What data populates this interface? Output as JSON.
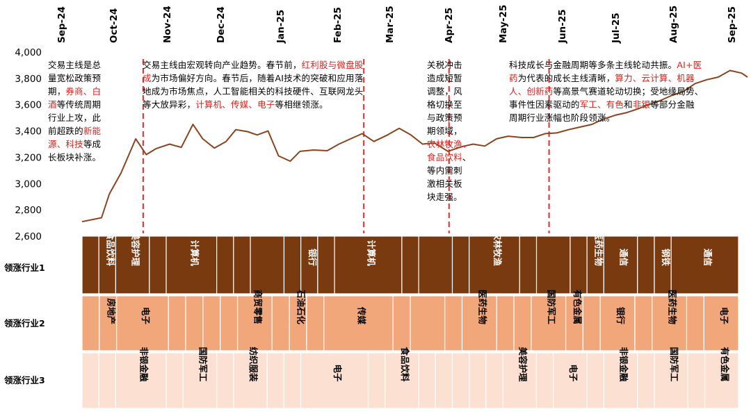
{
  "chart_data": {
    "type": "line",
    "months": [
      "Sep-24",
      "Oct-24",
      "Nov-24",
      "Dec-24",
      "Jan-25",
      "Feb-25",
      "Mar-25",
      "Apr-25",
      "May-25",
      "Jun-25",
      "Jul-25",
      "Aug-25",
      "Sep-25"
    ],
    "yticks": [
      "4,000",
      "3,800",
      "3,600",
      "3,400",
      "3,200",
      "3,000",
      "2,800",
      "2,600"
    ],
    "ylim": [
      2600,
      4000
    ],
    "series": [
      {
        "points": [
          [
            0,
            2710
          ],
          [
            0.5,
            2740
          ],
          [
            0.7,
            2920
          ],
          [
            1.0,
            3080
          ],
          [
            1.38,
            3340
          ],
          [
            1.65,
            3220
          ],
          [
            1.9,
            3265
          ],
          [
            2.25,
            3300
          ],
          [
            2.55,
            3275
          ],
          [
            2.85,
            3450
          ],
          [
            3.1,
            3340
          ],
          [
            3.4,
            3270
          ],
          [
            3.7,
            3320
          ],
          [
            3.95,
            3410
          ],
          [
            4.25,
            3395
          ],
          [
            4.5,
            3370
          ],
          [
            4.78,
            3400
          ],
          [
            5.05,
            3210
          ],
          [
            5.35,
            3170
          ],
          [
            5.6,
            3245
          ],
          [
            5.95,
            3255
          ],
          [
            6.3,
            3250
          ],
          [
            6.6,
            3300
          ],
          [
            6.9,
            3340
          ],
          [
            7.2,
            3380
          ],
          [
            7.5,
            3320
          ],
          [
            7.85,
            3370
          ],
          [
            8.15,
            3420
          ],
          [
            8.45,
            3370
          ],
          [
            8.75,
            3300
          ],
          [
            9.05,
            3310
          ],
          [
            9.4,
            3245
          ],
          [
            9.75,
            3280
          ],
          [
            10.05,
            3300
          ],
          [
            10.35,
            3285
          ],
          [
            10.65,
            3340
          ],
          [
            10.95,
            3360
          ],
          [
            11.3,
            3350
          ],
          [
            11.6,
            3350
          ],
          [
            11.9,
            3380
          ],
          [
            12.2,
            3385
          ],
          [
            12.5,
            3410
          ],
          [
            12.8,
            3430
          ],
          [
            13.1,
            3450
          ],
          [
            13.4,
            3490
          ],
          [
            13.7,
            3520
          ],
          [
            14.0,
            3540
          ],
          [
            14.3,
            3570
          ],
          [
            14.55,
            3600
          ],
          [
            14.85,
            3630
          ],
          [
            15.15,
            3670
          ],
          [
            15.45,
            3700
          ],
          [
            15.75,
            3760
          ],
          [
            16.05,
            3790
          ],
          [
            16.35,
            3810
          ],
          [
            16.65,
            3860
          ],
          [
            16.95,
            3840
          ],
          [
            17.1,
            3810
          ]
        ]
      }
    ],
    "dividers": [
      1.57,
      7.24,
      9.43,
      12.0
    ],
    "annotations": [
      {
        "segs": [
          [
            "t",
            "交易主线是总"
          ],
          [
            "t",
            "量宽松政策预"
          ],
          [
            "t",
            "期，"
          ],
          [
            "h",
            "券商、白"
          ],
          [
            "h",
            "酒"
          ],
          [
            "t",
            "等传统周期"
          ],
          [
            "t",
            "行业上攻，此"
          ],
          [
            "t",
            "前超跌的"
          ],
          [
            "h",
            "新能"
          ],
          [
            "h",
            "源、科技"
          ],
          [
            "t",
            "等成"
          ],
          [
            "t",
            "长板块补涨。"
          ]
        ],
        "lines": [
          [
            0
          ],
          [
            1
          ],
          [
            2,
            3
          ],
          [
            4,
            5
          ],
          [
            6
          ],
          [
            7,
            8
          ],
          [
            9,
            10
          ],
          [
            11
          ]
        ]
      },
      {
        "segs": [
          [
            "t",
            "交易主线由宏观转向产业趋势。春节前，"
          ],
          [
            "h",
            "红利股与微盘股"
          ],
          [
            "h",
            "成"
          ],
          [
            "t",
            "为市场偏好方向。春节后，随着AI技术的突破和应用落"
          ],
          [
            "t",
            "地成为市场焦点，人工智能相关的科技硬件、互联网龙头"
          ],
          [
            "t",
            "等大放异彩，"
          ],
          [
            "h",
            "计算机、传媒、电子"
          ],
          [
            "t",
            "等相继领涨。"
          ]
        ],
        "lines": [
          [
            0,
            1
          ],
          [
            2,
            3
          ],
          [
            4
          ],
          [
            5,
            6,
            7
          ]
        ]
      },
      {
        "segs": [
          [
            "t",
            "关税冲击"
          ],
          [
            "t",
            "造成短暂"
          ],
          [
            "t",
            "调整，风"
          ],
          [
            "t",
            "格切换至"
          ],
          [
            "t",
            "与政策预"
          ],
          [
            "t",
            "期领域，"
          ],
          [
            "h",
            "农林牧渔"
          ],
          [
            "h",
            "、"
          ],
          [
            "h",
            "食品饮料"
          ],
          [
            "t",
            "、"
          ],
          [
            "t",
            "等内需刺"
          ],
          [
            "t",
            "激相关板"
          ],
          [
            "t",
            "块走强。"
          ]
        ],
        "lines": [
          [
            0
          ],
          [
            1
          ],
          [
            2
          ],
          [
            3
          ],
          [
            4
          ],
          [
            5
          ],
          [
            6,
            7
          ],
          [
            8,
            9
          ],
          [
            10
          ],
          [
            11
          ],
          [
            12
          ]
        ]
      },
      {
        "segs": [
          [
            "t",
            "科技成长与金融周期等多条主线轮动共振。"
          ],
          [
            "h",
            "AI+医"
          ],
          [
            "h",
            "药"
          ],
          [
            "t",
            "为代表的成长主线清晰，"
          ],
          [
            "h",
            "算力、云计算、机器"
          ],
          [
            "h",
            "人、创新药"
          ],
          [
            "t",
            "等高景气赛道轮动切换；受地缘局势、"
          ],
          [
            "t",
            "事件性因素驱动的"
          ],
          [
            "h",
            "军工、有色"
          ],
          [
            "t",
            "和"
          ],
          [
            "h",
            "非银"
          ],
          [
            "t",
            "等部分金融"
          ],
          [
            "t",
            "周期行业涨幅也阶段领涨。"
          ]
        ],
        "lines": [
          [
            0,
            1
          ],
          [
            2,
            3,
            4
          ],
          [
            5,
            6
          ],
          [
            7,
            8,
            9,
            10,
            11
          ],
          [
            12
          ]
        ]
      }
    ],
    "rows": [
      {
        "label": "领涨行业1",
        "color": "#7a3a10",
        "text_color": "#ffffff",
        "cells": [
          {
            "span": 1,
            "text": ""
          },
          {
            "span": 1,
            "text": "食品饮料"
          },
          {
            "span": 2,
            "text": "美容护理"
          },
          {
            "span": 1,
            "text": ""
          },
          {
            "span": 3,
            "text": "计算机"
          },
          {
            "span": 1,
            "text": ""
          },
          {
            "span": 1,
            "text": ""
          },
          {
            "span": 2,
            "text": ""
          },
          {
            "span": 1,
            "text": ""
          },
          {
            "span": 1,
            "text": "银行"
          },
          {
            "span": 1,
            "text": ""
          },
          {
            "span": 4,
            "text": "计算机"
          },
          {
            "span": 1,
            "text": ""
          },
          {
            "span": 2,
            "text": ""
          },
          {
            "span": 1,
            "text": ""
          },
          {
            "span": 3,
            "text": "农林牧渔"
          },
          {
            "span": 1,
            "text": ""
          },
          {
            "span": 2,
            "text": ""
          },
          {
            "span": 1,
            "text": ""
          },
          {
            "span": 1,
            "text": "医药生物"
          },
          {
            "span": 2,
            "text": "通信"
          },
          {
            "span": 1,
            "text": ""
          },
          {
            "span": 1,
            "text": "钢铁"
          },
          {
            "span": 4,
            "text": "通信"
          }
        ]
      },
      {
        "label": "领涨行业2",
        "color": "#f2a77b",
        "text_color": "#000000",
        "cells": [
          {
            "span": 1,
            "text": ""
          },
          {
            "span": 1,
            "text": "房地产"
          },
          {
            "span": 3,
            "text": "电子"
          },
          {
            "span": 1,
            "text": ""
          },
          {
            "span": 1,
            "text": ""
          },
          {
            "span": 1,
            "text": ""
          },
          {
            "span": 1,
            "text": ""
          },
          {
            "span": 2,
            "text": "商贸零售"
          },
          {
            "span": 1,
            "text": ""
          },
          {
            "span": 1,
            "text": "石油石化"
          },
          {
            "span": 1,
            "text": ""
          },
          {
            "span": 4,
            "text": "传媒"
          },
          {
            "span": 1,
            "text": ""
          },
          {
            "span": 2,
            "text": ""
          },
          {
            "span": 1,
            "text": ""
          },
          {
            "span": 2,
            "text": "医药生物"
          },
          {
            "span": 1,
            "text": ""
          },
          {
            "span": 1,
            "text": ""
          },
          {
            "span": 2,
            "text": "国防军工"
          },
          {
            "span": 1,
            "text": "有色金属"
          },
          {
            "span": 1,
            "text": ""
          },
          {
            "span": 2,
            "text": "银行"
          },
          {
            "span": 1,
            "text": ""
          },
          {
            "span": 2,
            "text": "医药生物"
          },
          {
            "span": 1,
            "text": ""
          },
          {
            "span": 2,
            "text": "电子"
          }
        ]
      },
      {
        "label": "领涨行业3",
        "color": "#fce1d2",
        "text_color": "#000000",
        "cells": [
          {
            "span": 1,
            "text": ""
          },
          {
            "span": 1,
            "text": ""
          },
          {
            "span": 3,
            "text": "非银金融"
          },
          {
            "span": 1,
            "text": ""
          },
          {
            "span": 2,
            "text": "国防军工"
          },
          {
            "span": 1,
            "text": ""
          },
          {
            "span": 2,
            "text": "纺织服装"
          },
          {
            "span": 1,
            "text": ""
          },
          {
            "span": 1,
            "text": ""
          },
          {
            "span": 4,
            "text": "电子"
          },
          {
            "span": 1,
            "text": ""
          },
          {
            "span": 2,
            "text": "食品饮料"
          },
          {
            "span": 1,
            "text": ""
          },
          {
            "span": 1,
            "text": ""
          },
          {
            "span": 1,
            "text": ""
          },
          {
            "span": 1,
            "text": ""
          },
          {
            "span": 1,
            "text": ""
          },
          {
            "span": 2,
            "text": "美容护理"
          },
          {
            "span": 1,
            "text": ""
          },
          {
            "span": 2,
            "text": "电子"
          },
          {
            "span": 1,
            "text": ""
          },
          {
            "span": 2,
            "text": "非银金融"
          },
          {
            "span": 1,
            "text": ""
          },
          {
            "span": 2,
            "text": "国防军工"
          },
          {
            "span": 1,
            "text": ""
          },
          {
            "span": 2,
            "text": "有色金属"
          }
        ]
      }
    ]
  }
}
